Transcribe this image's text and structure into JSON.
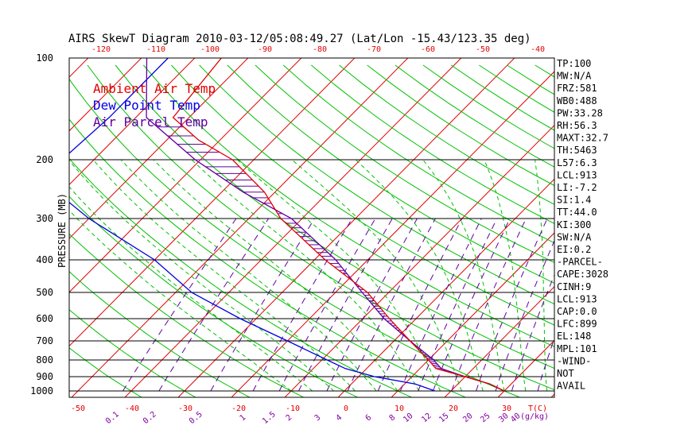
{
  "chart_data": {
    "type": "skewt",
    "title": "AIRS SkewT Diagram 2010-03-12/05:08:49.27 (Lat/Lon -15.43/123.35 deg)",
    "ylabel": "PRESSURE (MB)",
    "xlabel_unit": "T(C)",
    "mixing_ratio_unit": "(g/kg)",
    "pressure_levels": [
      100,
      200,
      300,
      400,
      500,
      600,
      700,
      800,
      900,
      1000
    ],
    "top_temp_ticks": [
      -120,
      -110,
      -100,
      -90,
      -80,
      -70,
      -60,
      -50,
      -40
    ],
    "bottom_temp_ticks": [
      -50,
      -40,
      -30,
      -20,
      -10,
      0,
      10,
      20,
      30
    ],
    "mixing_ratio_labels": [
      "0.1",
      "0.2",
      "0.5",
      "1",
      "1.5",
      "2",
      "3",
      "4",
      "6",
      "8",
      "10",
      "12",
      "15",
      "20",
      "25",
      "30",
      "40"
    ],
    "legend": [
      {
        "label": "Ambient Air Temp",
        "color": "#e00000"
      },
      {
        "label": "Dew Point Temp",
        "color": "#0000e0"
      },
      {
        "label": "Air Parcel Temp",
        "color": "#6000a0"
      }
    ],
    "ambient_temp": {
      "p": [
        100,
        150,
        175,
        200,
        250,
        300,
        400,
        500,
        600,
        700,
        800,
        850,
        900,
        950,
        1000
      ],
      "t": [
        -85,
        -83,
        -74,
        -64,
        -52,
        -44,
        -28,
        -14,
        -5,
        3,
        10,
        13,
        20,
        26,
        30
      ]
    },
    "dewpoint_temp": {
      "p": [
        100,
        150,
        200,
        250,
        300,
        400,
        500,
        600,
        700,
        800,
        850,
        900,
        950,
        1000
      ],
      "t": [
        -95,
        -95,
        -96,
        -91,
        -80,
        -60,
        -47,
        -33,
        -20,
        -9,
        -4,
        3,
        12,
        17
      ]
    },
    "parcel_temp": {
      "p": [
        100,
        150,
        200,
        250,
        300,
        400,
        500,
        600,
        700,
        800,
        850,
        900,
        950,
        1000
      ],
      "t": [
        -99,
        -88,
        -71,
        -56,
        -42,
        -26,
        -15,
        -6,
        3,
        11,
        14,
        20,
        26,
        30
      ]
    },
    "stats": [
      "TP:100",
      "MW:N/A",
      "FRZ:581",
      "WB0:488",
      "PW:33.28",
      "RH:56.3",
      "MAXT:32.7",
      "TH:5463",
      "L57:6.3",
      "LCL:913",
      "LI:-7.2",
      "SI:1.4",
      "TT:44.0",
      "KI:300",
      "SW:N/A",
      "EI:0.2",
      "-PARCEL-",
      "CAPE:3028",
      "CINH:9",
      "LCL:913",
      "CAP:0.0",
      "LFC:899",
      "EL:148",
      "MPL:101",
      "-WIND-",
      "NOT",
      "AVAIL"
    ]
  }
}
